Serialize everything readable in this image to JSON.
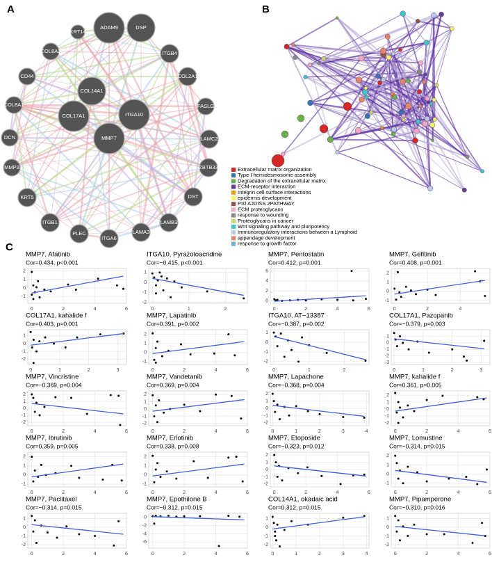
{
  "panel_labels": [
    "A",
    "B",
    "C"
  ],
  "network_a": {
    "nodes": [
      "ADAM9",
      "DSP",
      "KRT14",
      "ITGB4",
      "COL8A2",
      "COL2A1",
      "CD44",
      "FASLG",
      "COL8A1",
      "LAMC2",
      "DCN",
      "COL14A1",
      "ITGA10",
      "COL17A1",
      "MMP7",
      "ZBTB33",
      "MMP3",
      "DST",
      "KRT5",
      "LAMB3",
      "ITGB1",
      "PLEC",
      "LAMA3",
      "ITGA6"
    ]
  },
  "network_b": {
    "legend": [
      {
        "label": "Extracellular matrix organization",
        "color": "#d62728"
      },
      {
        "label": "Type I hemidesmosome assembly",
        "color": "#3b6fb6"
      },
      {
        "label": "Degradation of the extracellular matrix",
        "color": "#6ab04c"
      },
      {
        "label": "ECM-receptor interaction",
        "color": "#6a3d9a"
      },
      {
        "label": "Integrin cell surface interactions",
        "color": "#f39c12"
      },
      {
        "label": "epidermis development",
        "color": "#f7f26b"
      },
      {
        "label": "PID AJDISS 2PATHWAY",
        "color": "#8c564b"
      },
      {
        "label": "ECM proteoglycans",
        "color": "#f4a6c8"
      },
      {
        "label": "response to wounding",
        "color": "#8a8a8a"
      },
      {
        "label": "Proteoglycans in cancer",
        "color": "#c5d86d"
      },
      {
        "label": "Wnt signaling pathway and pluripotency",
        "color": "#40c4d0"
      },
      {
        "label": "Immunoregulatory interactions between a Lymphoid",
        "color": "#b9c9ee"
      },
      {
        "label": "appendage development",
        "color": "#e8836b"
      },
      {
        "label": "response to growth factor",
        "color": "#6baed6"
      }
    ]
  },
  "chart_data": [
    {
      "type": "scatter",
      "title": "MMP7, Afatinib",
      "subtitle": "Cor=0.434, p<0.001",
      "xlim": [
        -0.25,
        6
      ],
      "ylim": [
        -1.8,
        2.3
      ],
      "xticks": [
        0,
        2,
        4,
        6
      ],
      "yticks": [
        -1,
        0,
        1,
        2
      ],
      "x": [
        0,
        0,
        0.1,
        0.2,
        0.3,
        0.5,
        0.8,
        1.2,
        2.3,
        2.8,
        4.2,
        5.4,
        5.8,
        0.1,
        0.4
      ],
      "y": [
        1.9,
        -0.8,
        0.3,
        -0.5,
        0.1,
        -1.1,
        -0.2,
        -0.4,
        0.4,
        -0.2,
        1.1,
        0.3,
        -0.1,
        -1.3,
        0.8
      ],
      "fit_x": [
        0,
        5.8
      ],
      "fit_y": [
        -0.6,
        1.4
      ],
      "color": "#000000",
      "fit_color": "#3a5fd9"
    },
    {
      "type": "scatter",
      "title": "ITGA10, Pyrazoloacridine",
      "subtitle": "Cor=−0.415, p<0.001",
      "xlim": [
        -0.1,
        2.6
      ],
      "ylim": [
        -2.1,
        1.4
      ],
      "xticks": [
        0,
        1,
        2
      ],
      "yticks": [
        -2,
        -1,
        0,
        1
      ],
      "x": [
        0,
        0.05,
        0.1,
        0.15,
        0.2,
        0.3,
        0.4,
        0.5,
        0.6,
        0.8,
        1.5,
        2.5,
        0.1,
        0.25
      ],
      "y": [
        0.9,
        0.5,
        -0.3,
        0.2,
        1.0,
        -0.8,
        0.4,
        -1.5,
        0.1,
        -0.5,
        -0.9,
        -1.6,
        -1.1,
        0.6
      ],
      "fit_x": [
        0,
        2.5
      ],
      "fit_y": [
        0.4,
        -1.3
      ],
      "color": "#000000",
      "fit_color": "#3a5fd9"
    },
    {
      "type": "scatter",
      "title": "MMP7, Pentostatin",
      "subtitle": "Cor=0.412, p=0.001",
      "xlim": [
        -0.25,
        6
      ],
      "ylim": [
        -0.5,
        6.5
      ],
      "xticks": [
        0,
        2,
        4,
        6
      ],
      "yticks": [
        0,
        2,
        4,
        6
      ],
      "x": [
        0,
        0.1,
        0.2,
        0.5,
        1,
        1.5,
        2,
        3,
        4,
        4.9,
        5,
        5.8
      ],
      "y": [
        0.3,
        0.1,
        0.2,
        0,
        0.1,
        0.2,
        0.1,
        0.3,
        0.2,
        6,
        0.1,
        0.4
      ],
      "fit_x": [
        0,
        5.8
      ],
      "fit_y": [
        -0.1,
        1.0
      ],
      "color": "#000000",
      "fit_color": "#3a5fd9"
    },
    {
      "type": "scatter",
      "title": "MMP7, Gefitinib",
      "subtitle": "Cor=0.408, p=0.001",
      "xlim": [
        -0.2,
        5.8
      ],
      "ylim": [
        -1.3,
        2.5
      ],
      "xticks": [
        0,
        2,
        4
      ],
      "yticks": [
        -1,
        0,
        1,
        2
      ],
      "x": [
        0,
        0.1,
        0.2,
        0.4,
        0.7,
        1,
        1.3,
        2,
        2.5,
        4.9,
        5.2,
        5.5,
        0.3
      ],
      "y": [
        0.3,
        -0.9,
        2.1,
        -0.6,
        0.5,
        0.1,
        -0.3,
        0.2,
        -0.4,
        2.2,
        1.1,
        -0.5,
        -0.1
      ],
      "fit_x": [
        0,
        5.5
      ],
      "fit_y": [
        -0.3,
        1.2
      ],
      "color": "#000000",
      "fit_color": "#3a5fd9"
    },
    {
      "type": "scatter",
      "title": "COL17A1, kahalide f",
      "subtitle": "Cor=0.403, p=0.001",
      "xlim": [
        -0.1,
        3.3
      ],
      "ylim": [
        -2.7,
        1.8
      ],
      "xticks": [
        0,
        1,
        2,
        3
      ],
      "yticks": [
        -2,
        -1,
        0,
        1
      ],
      "x": [
        0,
        0.05,
        0.1,
        0.2,
        0.3,
        0.5,
        0.8,
        1.2,
        1.6,
        2.4,
        3.2,
        0.1
      ],
      "y": [
        1.5,
        -0.5,
        0.5,
        -1,
        0.3,
        0.8,
        0,
        -0.5,
        0.8,
        1.2,
        1.3,
        -2.5
      ],
      "fit_x": [
        0,
        3.2
      ],
      "fit_y": [
        -0.2,
        1.3
      ],
      "color": "#000000",
      "fit_color": "#3a5fd9"
    },
    {
      "type": "scatter",
      "title": "MMP7, Lapatinib",
      "subtitle": "Cor=0.391, p=0.002",
      "xlim": [
        -0.25,
        6
      ],
      "ylim": [
        -1.3,
        2.5
      ],
      "xticks": [
        0,
        2,
        4,
        6
      ],
      "yticks": [
        -1,
        0,
        1,
        2
      ],
      "x": [
        0,
        0.1,
        0.2,
        0.3,
        0.6,
        1,
        1.8,
        2.4,
        3.9,
        4.8,
        5.2,
        0.2
      ],
      "y": [
        2.1,
        -0.8,
        0.5,
        1.2,
        -0.4,
        0.2,
        0.9,
        -0.2,
        -0.1,
        2,
        -0.3,
        -1.1
      ],
      "fit_x": [
        0,
        5.8
      ],
      "fit_y": [
        -0.1,
        1.2
      ],
      "color": "#000000",
      "fit_color": "#3a5fd9"
    },
    {
      "type": "scatter",
      "title": "ITGA10, AT−13387",
      "subtitle": "Cor=−0.387, p=0.002",
      "xlim": [
        -0.1,
        2.7
      ],
      "ylim": [
        -2.3,
        1.3
      ],
      "xticks": [
        0,
        1,
        2
      ],
      "yticks": [
        -2,
        -1,
        0,
        1
      ],
      "x": [
        0,
        0.05,
        0.1,
        0.2,
        0.3,
        0.4,
        0.5,
        0.7,
        0.8,
        1,
        1.5,
        2.6
      ],
      "y": [
        1,
        0.6,
        -0.4,
        0.9,
        -1.5,
        0.2,
        -0.8,
        -2,
        0.5,
        -0.3,
        -1.1,
        -1.9
      ],
      "fit_x": [
        0,
        2.6
      ],
      "fit_y": [
        0.6,
        -1.8
      ],
      "color": "#000000",
      "fit_color": "#3a5fd9"
    },
    {
      "type": "scatter",
      "title": "COL17A1, Pazopanib",
      "subtitle": "Cor=−0.379, p=0.003",
      "xlim": [
        -0.1,
        3.3
      ],
      "ylim": [
        -3.3,
        2
      ],
      "xticks": [
        0,
        1,
        2,
        3
      ],
      "yticks": [
        -3,
        -2,
        -1,
        0,
        1
      ],
      "x": [
        0,
        0.05,
        0.1,
        0.2,
        0.3,
        0.5,
        0.8,
        1.2,
        2,
        2.4,
        2.5,
        3.1
      ],
      "y": [
        1.5,
        0.5,
        -0.5,
        1,
        0,
        -1,
        0.2,
        -1.5,
        -1,
        -2.1,
        -2.7,
        0.3
      ],
      "fit_x": [
        0,
        3.1
      ],
      "fit_y": [
        0.6,
        -0.9
      ],
      "color": "#000000",
      "fit_color": "#3a5fd9"
    },
    {
      "type": "scatter",
      "title": "MMP7, Vincristine",
      "subtitle": "Cor=−0.369, p=0.004",
      "xlim": [
        -0.25,
        6
      ],
      "ylim": [
        -2.5,
        2.5
      ],
      "xticks": [
        0,
        2,
        4,
        6
      ],
      "yticks": [
        -2,
        -1,
        0,
        1,
        2
      ],
      "x": [
        0,
        0.1,
        0.2,
        0.3,
        0.5,
        0.8,
        1.5,
        2.5,
        3.5,
        5,
        5.6,
        5.5
      ],
      "y": [
        2,
        1.5,
        -0.5,
        0.8,
        -1,
        0.2,
        1.6,
        1.5,
        -0.8,
        1.9,
        -2.4,
        1.8
      ],
      "fit_x": [
        0,
        5.8
      ],
      "fit_y": [
        0.7,
        -0.8
      ],
      "color": "#000000",
      "fit_color": "#3a5fd9"
    },
    {
      "type": "scatter",
      "title": "MMP7, Vandetanib",
      "subtitle": "Cor=0.369, p=0.004",
      "xlim": [
        -0.25,
        6
      ],
      "ylim": [
        -2.3,
        2.5
      ],
      "xticks": [
        0,
        2,
        4,
        6
      ],
      "yticks": [
        -2,
        -1,
        0,
        1,
        2
      ],
      "x": [
        0,
        0.1,
        0.2,
        0.4,
        0.7,
        1.1,
        2,
        3,
        4,
        5,
        5.6,
        0.3
      ],
      "y": [
        1.9,
        -1,
        0.5,
        1.2,
        -0.5,
        0,
        0.6,
        -0.3,
        2,
        1.8,
        -1.3,
        -1.8
      ],
      "fit_x": [
        0,
        5.8
      ],
      "fit_y": [
        -0.3,
        1.3
      ],
      "color": "#000000",
      "fit_color": "#3a5fd9"
    },
    {
      "type": "scatter",
      "title": "MMP7, Lapachone",
      "subtitle": "Cor=−0.368, p=0.004",
      "xlim": [
        -0.1,
        4.1
      ],
      "ylim": [
        -2.4,
        2.4
      ],
      "xticks": [
        0,
        1,
        2,
        3,
        4
      ],
      "yticks": [
        -2,
        -1,
        0,
        1,
        2
      ],
      "x": [
        0,
        0.05,
        0.1,
        0.2,
        0.3,
        0.5,
        0.7,
        1,
        1.5,
        2,
        3,
        3.9
      ],
      "y": [
        2,
        1,
        -0.5,
        0.5,
        -1.5,
        0.2,
        -1,
        0.3,
        -0.4,
        -0.8,
        -1.2,
        -1.3
      ],
      "fit_x": [
        0,
        3.9
      ],
      "fit_y": [
        0.4,
        -1.1
      ],
      "color": "#000000",
      "fit_color": "#3a5fd9"
    },
    {
      "type": "scatter",
      "title": "MMP7, kahalide f",
      "subtitle": "Cor=0.361, p=0.005",
      "xlim": [
        -0.25,
        6
      ],
      "ylim": [
        -2.4,
        2.6
      ],
      "xticks": [
        0,
        2,
        4,
        6
      ],
      "yticks": [
        -2,
        -1,
        0,
        1,
        2
      ],
      "x": [
        0,
        0.1,
        0.2,
        0.3,
        0.5,
        0.8,
        1.2,
        2,
        3,
        5.2,
        5.6,
        0.2
      ],
      "y": [
        2.3,
        -0.5,
        1,
        0.2,
        -1.2,
        0.5,
        -0.3,
        1.3,
        1.9,
        1.7,
        1.4,
        -2
      ],
      "fit_x": [
        0,
        5.8
      ],
      "fit_y": [
        -0.3,
        1.6
      ],
      "color": "#000000",
      "fit_color": "#3a5fd9"
    },
    {
      "type": "scatter",
      "title": "MMP7, Ibrutinib",
      "subtitle": "Cor=0.359, p=0.005",
      "xlim": [
        -0.25,
        6
      ],
      "ylim": [
        -1.3,
        2.5
      ],
      "xticks": [
        0,
        2,
        4,
        6
      ],
      "yticks": [
        -1,
        0,
        1,
        2
      ],
      "x": [
        0,
        0.1,
        0.2,
        0.4,
        0.6,
        0.9,
        1.5,
        2.5,
        3,
        4.5,
        5.1,
        5.7
      ],
      "y": [
        2,
        -0.7,
        0.5,
        -0.2,
        1.1,
        0,
        0.2,
        1,
        -0.3,
        -0.5,
        1.1,
        -0.6
      ],
      "fit_x": [
        0,
        5.8
      ],
      "fit_y": [
        -0.2,
        1.2
      ],
      "color": "#000000",
      "fit_color": "#3a5fd9"
    },
    {
      "type": "scatter",
      "title": "MMP7, Erlotinib",
      "subtitle": "Cor=0.338, p=0.008",
      "xlim": [
        -0.25,
        6
      ],
      "ylim": [
        -1.3,
        2.5
      ],
      "xticks": [
        0,
        2,
        4,
        6
      ],
      "yticks": [
        -1,
        0,
        1,
        2
      ],
      "x": [
        0,
        0.1,
        0.2,
        0.3,
        0.5,
        0.9,
        1.5,
        2.6,
        3.5,
        4.8,
        5.3,
        5.7
      ],
      "y": [
        2.1,
        -0.8,
        0.6,
        1.3,
        -0.2,
        0.4,
        -0.4,
        1.5,
        -0.3,
        1.9,
        2,
        -0.7
      ],
      "fit_x": [
        0,
        5.8
      ],
      "fit_y": [
        -0.1,
        1.2
      ],
      "color": "#000000",
      "fit_color": "#3a5fd9"
    },
    {
      "type": "scatter",
      "title": "MMP7, Etoposide",
      "subtitle": "Cor=−0.323, p=0.012",
      "xlim": [
        -0.25,
        6
      ],
      "ylim": [
        -2.4,
        2.4
      ],
      "xticks": [
        0,
        2,
        4,
        6
      ],
      "yticks": [
        -2,
        -1,
        0,
        1,
        2
      ],
      "x": [
        0,
        0.1,
        0.2,
        0.3,
        0.5,
        0.9,
        1.5,
        2.1,
        3,
        4.2,
        5,
        5.7
      ],
      "y": [
        2,
        1,
        -1,
        0.5,
        -1.5,
        0.2,
        -0.5,
        0.3,
        -0.9,
        -2,
        -0.8,
        -0.7
      ],
      "fit_x": [
        0,
        5.8
      ],
      "fit_y": [
        0.5,
        -0.9
      ],
      "color": "#000000",
      "fit_color": "#3a5fd9"
    },
    {
      "type": "scatter",
      "title": "MMP7, Lomustine",
      "subtitle": "Cor=−0.314, p=0.015",
      "xlim": [
        -0.25,
        6
      ],
      "ylim": [
        -1.4,
        2.4
      ],
      "xticks": [
        0,
        2,
        4,
        6
      ],
      "yticks": [
        -1,
        0,
        1,
        2
      ],
      "x": [
        0,
        0.1,
        0.2,
        0.3,
        0.5,
        0.8,
        1.4,
        2,
        3.4,
        4.5,
        5.2,
        5.8
      ],
      "y": [
        2,
        1.2,
        -0.5,
        0.4,
        -1,
        0.8,
        0.2,
        -0.8,
        -0.5,
        -0.3,
        -1.1,
        0.5
      ],
      "fit_x": [
        0,
        5.8
      ],
      "fit_y": [
        0.4,
        -0.9
      ],
      "color": "#000000",
      "fit_color": "#3a5fd9"
    },
    {
      "type": "scatter",
      "title": "MMP7, Paclitaxel",
      "subtitle": "Cor=−0.314, p=0.015",
      "xlim": [
        -0.25,
        6
      ],
      "ylim": [
        -2.4,
        1.6
      ],
      "xticks": [
        0,
        2,
        4,
        6
      ],
      "yticks": [
        -2,
        -1,
        0,
        1
      ],
      "x": [
        0,
        0.1,
        0.2,
        0.3,
        0.6,
        1,
        1.6,
        2.2,
        3,
        4,
        5.2,
        5.5
      ],
      "y": [
        1.3,
        -0.5,
        0.8,
        -1.8,
        0.2,
        -0.6,
        -1.2,
        0.1,
        -0.8,
        -1,
        -2.1,
        0.7
      ],
      "fit_x": [
        0,
        5.8
      ],
      "fit_y": [
        0.3,
        -0.8
      ],
      "color": "#000000",
      "fit_color": "#3a5fd9"
    },
    {
      "type": "scatter",
      "title": "MMP7, Epothilone B",
      "subtitle": "Cor=−0.312, p=0.015",
      "xlim": [
        -0.25,
        6
      ],
      "ylim": [
        -7.5,
        1
      ],
      "xticks": [
        0,
        2,
        4,
        6
      ],
      "yticks": [
        -6,
        -4,
        -2,
        0
      ],
      "x": [
        0,
        0.2,
        0.5,
        1,
        1.5,
        2,
        3,
        4.2,
        4.8,
        5.5,
        0.1
      ],
      "y": [
        0.3,
        0.4,
        0.3,
        0.4,
        0.2,
        0.3,
        0.3,
        -7,
        0.4,
        0.2,
        -1.5
      ],
      "fit_x": [
        0,
        5.8
      ],
      "fit_y": [
        0.2,
        -0.6
      ],
      "color": "#000000",
      "fit_color": "#3a5fd9"
    },
    {
      "type": "scatter",
      "title": "COL14A1, okadaic acid",
      "subtitle": "Cor=0.312, p=0.015",
      "xlim": [
        -0.1,
        4.1
      ],
      "ylim": [
        -2.4,
        1.6
      ],
      "xticks": [
        0,
        1,
        2,
        3,
        4
      ],
      "yticks": [
        -2,
        -1,
        0,
        1
      ],
      "x": [
        0,
        0.05,
        0.1,
        0.15,
        0.2,
        0.3,
        0.5,
        0.8,
        1.5,
        3,
        3.9,
        0.1
      ],
      "y": [
        1.2,
        0.5,
        -0.5,
        -1.5,
        0.3,
        -2.2,
        -0.3,
        0.7,
        0.3,
        1.1,
        1.3,
        -1
      ],
      "fit_x": [
        0,
        3.9
      ],
      "fit_y": [
        -0.2,
        1.2
      ],
      "color": "#000000",
      "fit_color": "#3a5fd9"
    },
    {
      "type": "scatter",
      "title": "MMP7, Pipamperone",
      "subtitle": "Cor=−0.310, p=0.016",
      "xlim": [
        -0.25,
        6
      ],
      "ylim": [
        -2.4,
        1.6
      ],
      "xticks": [
        0,
        2,
        4,
        6
      ],
      "yticks": [
        -2,
        -1,
        0,
        1
      ],
      "x": [
        0,
        0.1,
        0.2,
        0.3,
        0.5,
        0.8,
        1.2,
        2,
        3.1,
        4.9,
        5.5,
        5.7
      ],
      "y": [
        1.3,
        -0.5,
        0.8,
        -1.5,
        0.1,
        -1,
        0.3,
        -0.8,
        -0.8,
        -1.8,
        0.5,
        -1
      ],
      "fit_x": [
        0,
        5.8
      ],
      "fit_y": [
        0.1,
        -1
      ],
      "color": "#000000",
      "fit_color": "#3a5fd9"
    }
  ]
}
